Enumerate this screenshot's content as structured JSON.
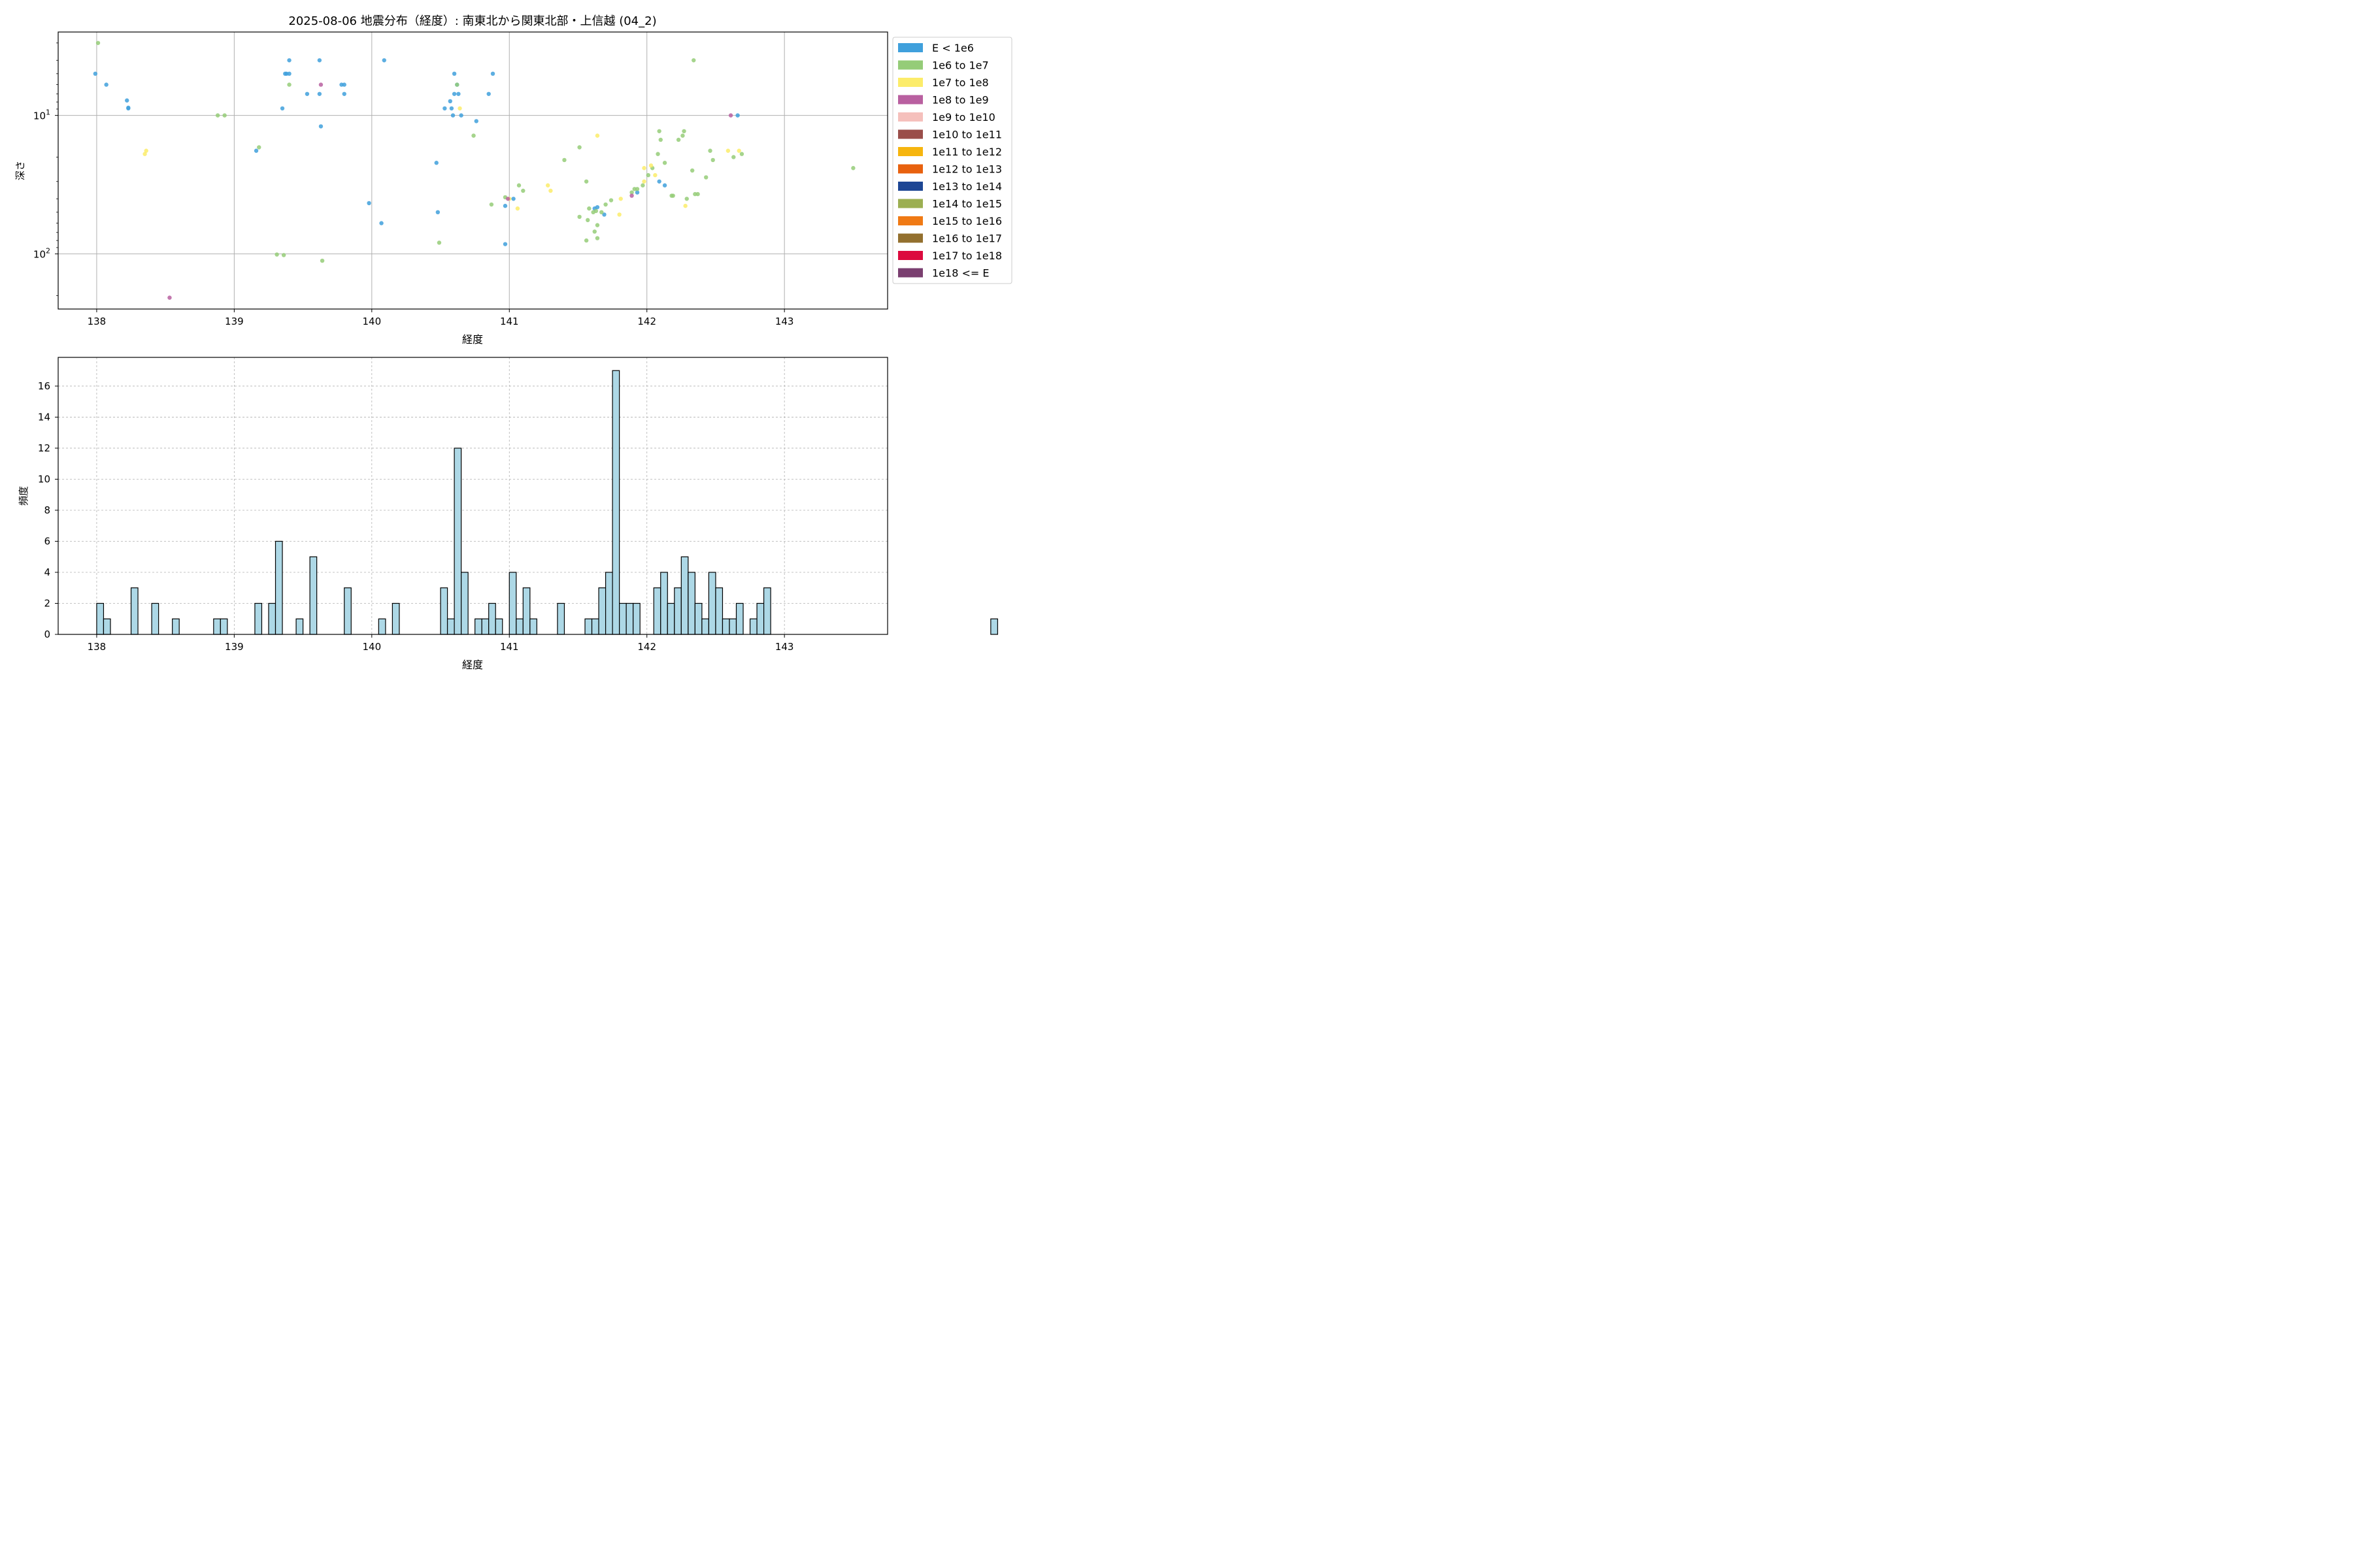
{
  "chart_data": [
    {
      "type": "scatter",
      "title": "2025-08-06 地震分布（経度）: 南東北から関東北部・上信越 (04_2)",
      "xlabel": "経度",
      "ylabel": "深さ",
      "xlim": [
        137.72,
        143.75
      ],
      "ylim": [
        250,
        2.5
      ],
      "y_scale": "log",
      "y_inverted": true,
      "xticks": [
        138,
        139,
        140,
        141,
        142,
        143
      ],
      "xtick_labels": [
        "138",
        "139",
        "140",
        "141",
        "142",
        "143"
      ],
      "yticks": [
        10,
        100
      ],
      "ytick_labels": [
        {
          "base": "10",
          "exp": "1"
        },
        {
          "base": "10",
          "exp": "2"
        }
      ],
      "grid": true,
      "legend_position": "outside-right",
      "legend": [
        {
          "label": "E < 1e6",
          "color": "#3fa0dc"
        },
        {
          "label": "1e6 to 1e7",
          "color": "#95cc78"
        },
        {
          "label": "1e7 to 1e8",
          "color": "#fcec6a"
        },
        {
          "label": "1e8 to 1e9",
          "color": "#b960a0"
        },
        {
          "label": "1e9 to 1e10",
          "color": "#f5c0bc"
        },
        {
          "label": "1e10 to 1e11",
          "color": "#9a4e4a"
        },
        {
          "label": "1e11 to 1e12",
          "color": "#f6b50e"
        },
        {
          "label": "1e12 to 1e13",
          "color": "#e8610e"
        },
        {
          "label": "1e13 to 1e14",
          "color": "#1d4694"
        },
        {
          "label": "1e14 to 1e15",
          "color": "#9caf52"
        },
        {
          "label": "1e15 to 1e16",
          "color": "#f07a14"
        },
        {
          "label": "1e16 to 1e17",
          "color": "#93702e"
        },
        {
          "label": "1e17 to 1e18",
          "color": "#dc0a3e"
        },
        {
          "label": "1e18 <= E",
          "color": "#7a3f70"
        }
      ],
      "series": [
        {
          "name": "E < 1e6",
          "points": [
            [
              137.99,
              5.0
            ],
            [
              138.07,
              6.0
            ],
            [
              138.22,
              7.8
            ],
            [
              138.23,
              8.8
            ],
            [
              138.23,
              8.9
            ],
            [
              139.16,
              18.0
            ],
            [
              139.35,
              8.9
            ],
            [
              139.37,
              5.0
            ],
            [
              139.38,
              5.0
            ],
            [
              139.4,
              5.0
            ],
            [
              139.4,
              4.0
            ],
            [
              139.53,
              7.0
            ],
            [
              139.62,
              4.0
            ],
            [
              139.62,
              7.0
            ],
            [
              139.63,
              12.0
            ],
            [
              139.78,
              6.0
            ],
            [
              139.8,
              6.0
            ],
            [
              139.8,
              7.0
            ],
            [
              139.98,
              43.0
            ],
            [
              140.07,
              60.0
            ],
            [
              140.09,
              4.0
            ],
            [
              140.47,
              22.0
            ],
            [
              140.48,
              50.0
            ],
            [
              140.53,
              8.9
            ],
            [
              140.57,
              7.9
            ],
            [
              140.58,
              8.9
            ],
            [
              140.59,
              10.0
            ],
            [
              140.6,
              5.0
            ],
            [
              140.6,
              7.0
            ],
            [
              140.62,
              6.0
            ],
            [
              140.63,
              7.0
            ],
            [
              140.65,
              10.0
            ],
            [
              140.76,
              11.0
            ],
            [
              140.85,
              7.0
            ],
            [
              140.88,
              5.0
            ],
            [
              140.97,
              45.0
            ],
            [
              140.97,
              85.0
            ],
            [
              141.03,
              40.0
            ],
            [
              141.62,
              47.0
            ],
            [
              141.64,
              46.0
            ],
            [
              141.69,
              52.0
            ],
            [
              141.93,
              36.0
            ],
            [
              142.09,
              30.0
            ],
            [
              142.13,
              32.0
            ],
            [
              142.66,
              10.0
            ]
          ]
        },
        {
          "name": "1e6 to 1e7",
          "points": [
            [
              138.01,
              3.0
            ],
            [
              138.88,
              10.0
            ],
            [
              138.93,
              10.0
            ],
            [
              139.18,
              17.0
            ],
            [
              139.31,
              101.0
            ],
            [
              139.36,
              102.0
            ],
            [
              139.4,
              6.0
            ],
            [
              139.64,
              112.0
            ],
            [
              140.49,
              83.0
            ],
            [
              140.62,
              6.0
            ],
            [
              140.74,
              14.0
            ],
            [
              140.87,
              44.0
            ],
            [
              140.97,
              39.0
            ],
            [
              141.07,
              32.0
            ],
            [
              141.1,
              35.0
            ],
            [
              141.4,
              21.0
            ],
            [
              141.51,
              54.0
            ],
            [
              141.51,
              17.0
            ],
            [
              141.56,
              30.0
            ],
            [
              141.56,
              80.0
            ],
            [
              141.57,
              57.0
            ],
            [
              141.58,
              47.0
            ],
            [
              141.61,
              50.0
            ],
            [
              141.62,
              69.0
            ],
            [
              141.63,
              49.0
            ],
            [
              141.64,
              62.0
            ],
            [
              141.64,
              77.0
            ],
            [
              141.67,
              50.0
            ],
            [
              141.7,
              44.0
            ],
            [
              141.74,
              41.0
            ],
            [
              141.89,
              36.0
            ],
            [
              141.91,
              34.0
            ],
            [
              141.93,
              34.0
            ],
            [
              141.97,
              32.0
            ],
            [
              142.01,
              27.0
            ],
            [
              142.04,
              24.0
            ],
            [
              142.08,
              19.0
            ],
            [
              142.09,
              13.0
            ],
            [
              142.1,
              15.0
            ],
            [
              142.13,
              22.0
            ],
            [
              142.18,
              38.0
            ],
            [
              142.19,
              38.0
            ],
            [
              142.23,
              15.0
            ],
            [
              142.26,
              14.0
            ],
            [
              142.27,
              13.0
            ],
            [
              142.29,
              40.0
            ],
            [
              142.33,
              25.0
            ],
            [
              142.34,
              4.0
            ],
            [
              142.35,
              37.0
            ],
            [
              142.37,
              37.0
            ],
            [
              142.43,
              28.0
            ],
            [
              142.46,
              18.0
            ],
            [
              142.48,
              21.0
            ],
            [
              142.63,
              20.0
            ],
            [
              142.69,
              19.0
            ],
            [
              143.5,
              24.0
            ]
          ]
        },
        {
          "name": "1e7 to 1e8",
          "points": [
            [
              138.35,
              19.0
            ],
            [
              138.36,
              18.0
            ],
            [
              140.64,
              8.9
            ],
            [
              141.0,
              40.0
            ],
            [
              141.06,
              47.0
            ],
            [
              141.28,
              32.0
            ],
            [
              141.3,
              35.0
            ],
            [
              141.64,
              14.0
            ],
            [
              141.8,
              52.0
            ],
            [
              141.81,
              40.0
            ],
            [
              141.98,
              30.0
            ],
            [
              141.98,
              24.0
            ],
            [
              142.03,
              23.0
            ],
            [
              142.06,
              27.0
            ],
            [
              142.28,
              45.0
            ],
            [
              142.59,
              18.0
            ],
            [
              142.67,
              18.0
            ]
          ]
        },
        {
          "name": "1e8 to 1e9",
          "points": [
            [
              138.53,
              207.0
            ],
            [
              139.63,
              6.0
            ],
            [
              140.99,
              40.0
            ],
            [
              141.89,
              38.0
            ],
            [
              142.61,
              10.0
            ]
          ]
        }
      ]
    },
    {
      "type": "bar",
      "subtype": "histogram",
      "xlabel": "経度",
      "ylabel": "頻度",
      "xlim": [
        137.72,
        143.75
      ],
      "ylim": [
        0,
        17.85
      ],
      "xticks": [
        138,
        139,
        140,
        141,
        142,
        143
      ],
      "xtick_labels": [
        "138",
        "139",
        "140",
        "141",
        "142",
        "143"
      ],
      "yticks": [
        0,
        2,
        4,
        6,
        8,
        10,
        12,
        14,
        16
      ],
      "ytick_labels": [
        "0",
        "2",
        "4",
        "6",
        "8",
        "10",
        "12",
        "14",
        "16"
      ],
      "grid": true,
      "bar_color": "#add8e6",
      "bar_edge_color": "#000000",
      "bin_start": 138.0,
      "bin_width": 0.05,
      "counts": [
        2,
        1,
        0,
        0,
        0,
        3,
        0,
        0,
        2,
        0,
        0,
        1,
        0,
        0,
        0,
        0,
        0,
        1,
        1,
        0,
        0,
        0,
        0,
        2,
        0,
        2,
        6,
        0,
        0,
        1,
        0,
        5,
        0,
        0,
        0,
        0,
        3,
        0,
        0,
        0,
        0,
        1,
        0,
        2,
        0,
        0,
        0,
        0,
        0,
        0,
        3,
        1,
        12,
        4,
        0,
        1,
        1,
        2,
        1,
        0,
        4,
        1,
        3,
        1,
        0,
        0,
        0,
        2,
        0,
        0,
        0,
        1,
        1,
        3,
        4,
        17,
        2,
        2,
        2,
        0,
        0,
        3,
        4,
        2,
        3,
        5,
        4,
        2,
        1,
        4,
        3,
        1,
        1,
        2,
        0,
        1,
        2,
        3,
        0,
        0,
        0,
        0,
        0,
        0,
        0,
        0,
        0,
        0,
        0,
        0,
        0,
        0,
        0,
        0,
        0,
        0,
        0,
        0,
        0,
        0,
        0,
        0,
        0,
        0,
        0,
        0,
        0,
        0,
        0,
        0,
        1
      ]
    }
  ]
}
